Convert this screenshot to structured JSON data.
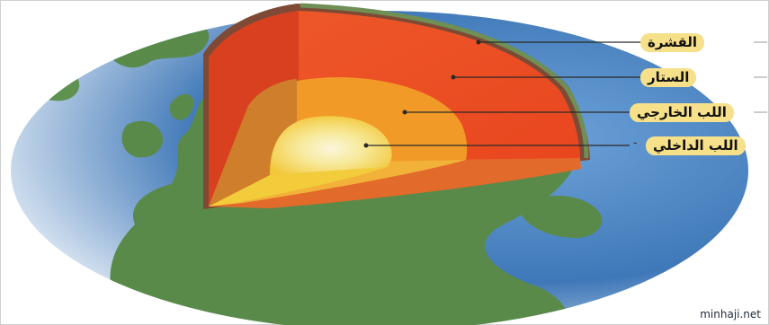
{
  "labels": {
    "crust": "القشرة",
    "mantle": "الستار",
    "outer_core": "اللب الخارجي",
    "inner_core": "اللب الداخلي"
  },
  "stray_mark": "-",
  "watermark": "minhaji.net",
  "colors": {
    "ocean": "#4d86c4",
    "land": "#5a8a4a",
    "crust": "#7e4a35",
    "mantle": "#ef5626",
    "outer_core": "#f29a28",
    "inner_core": "#f6ec9c",
    "label_bg": "#f6e08a"
  }
}
